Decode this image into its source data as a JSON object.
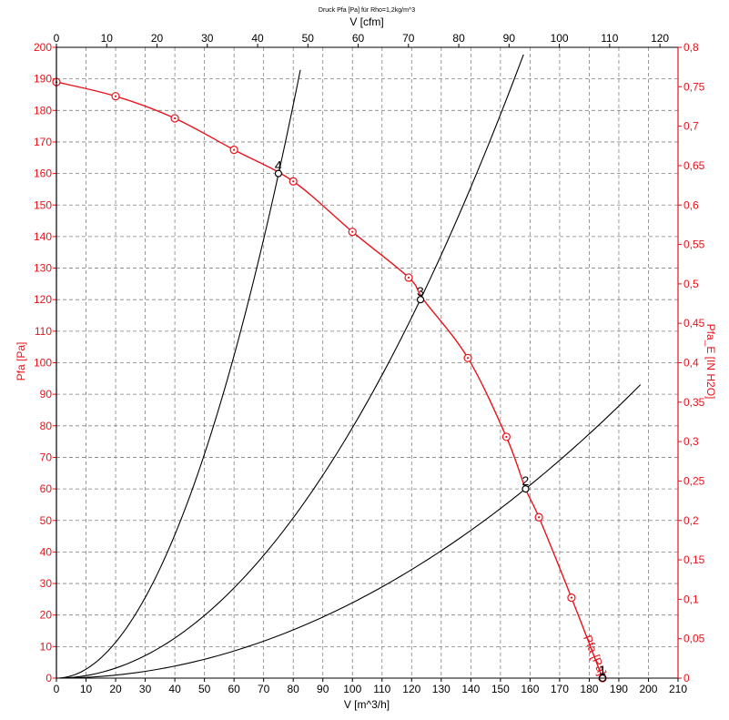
{
  "chart_data": {
    "type": "line",
    "title": "Druck Pfa [Pa] für Rho=1,2kg/m^3",
    "xlabel": "V [m^3/h]",
    "x2label": "V [cfm]",
    "ylabel": "Pfa [Pa]",
    "y2label": "Pfa_E [IN H2O]",
    "xlim": [
      0,
      210
    ],
    "x2lim": [
      0,
      123.6
    ],
    "ylim": [
      0,
      200
    ],
    "y2lim": [
      0,
      0.8
    ],
    "grid": true,
    "colors": {
      "curve": "#e8121a",
      "system": "#000000",
      "grid": "#808080"
    },
    "x_ticks": [
      "0",
      "10",
      "20",
      "30",
      "40",
      "50",
      "60",
      "70",
      "80",
      "90",
      "100",
      "110",
      "120",
      "130",
      "140",
      "150",
      "160",
      "170",
      "180",
      "190",
      "200",
      "210"
    ],
    "x2_ticks": [
      "0",
      "10",
      "20",
      "30",
      "40",
      "50",
      "60",
      "70",
      "80",
      "90",
      "100",
      "110",
      "120"
    ],
    "y_ticks": [
      "0",
      "10",
      "20",
      "30",
      "40",
      "50",
      "60",
      "70",
      "80",
      "90",
      "100",
      "110",
      "120",
      "130",
      "140",
      "150",
      "160",
      "170",
      "180",
      "190",
      "200"
    ],
    "y2_ticks": [
      "0",
      "0,05",
      "0,1",
      "0,15",
      "0,2",
      "0,25",
      "0,3",
      "0,35",
      "0,4",
      "0,45",
      "0,5",
      "0,55",
      "0,6",
      "0,65",
      "0,7",
      "0,75",
      "0,8"
    ],
    "fan_curve": {
      "name": "Pfa [Pa]",
      "x": [
        0,
        20,
        40,
        60,
        80,
        100,
        119,
        124,
        139,
        152,
        158.5,
        163,
        174,
        184.5
      ],
      "y": [
        189,
        184.5,
        177.5,
        167.5,
        157.5,
        141.5,
        127,
        120,
        101.5,
        76.5,
        60,
        51,
        25.5,
        0
      ],
      "markers_x": [
        0,
        20,
        40,
        60,
        80,
        100,
        119,
        139,
        152,
        163,
        174,
        184.5
      ],
      "markers_y": [
        189,
        184.5,
        177.5,
        167.5,
        157.5,
        141.5,
        127,
        101.5,
        76.5,
        51,
        25.5,
        0
      ]
    },
    "system_curves": [
      {
        "name": "4",
        "k": 0.0284,
        "x_max": 82.4
      },
      {
        "name": "3",
        "k": 0.00794,
        "x_max": 157.8
      },
      {
        "name": "2",
        "k": 0.00239,
        "x_max": 197.3
      },
      {
        "name": "1",
        "k": 0,
        "x_max": 184.5
      }
    ],
    "operating_points": [
      {
        "label": "4",
        "x": 75,
        "y": 160
      },
      {
        "label": "3",
        "x": 123,
        "y": 120
      },
      {
        "label": "2",
        "x": 158.5,
        "y": 60
      },
      {
        "label": "1",
        "x": 184.5,
        "y": 0
      }
    ]
  }
}
